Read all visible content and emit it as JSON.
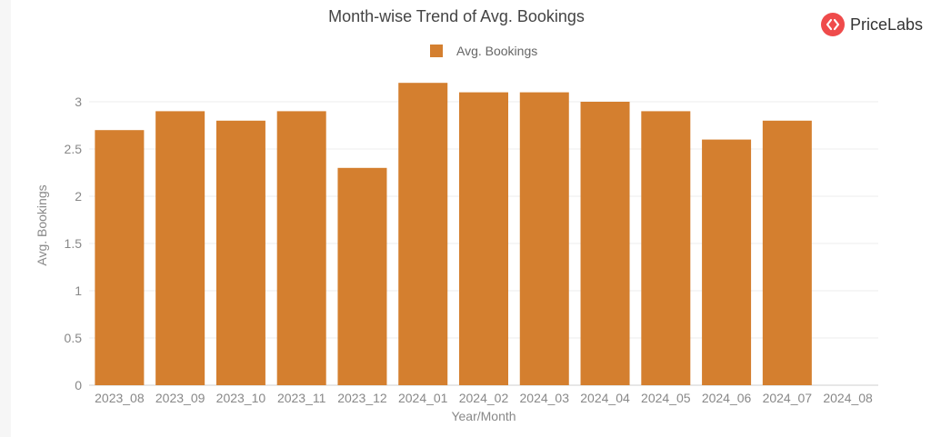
{
  "brand": {
    "name": "PriceLabs",
    "color": "#ef4b4b"
  },
  "chart_data": {
    "type": "bar",
    "title": "Month-wise Trend of Avg. Bookings",
    "xlabel": "Year/Month",
    "ylabel": "Avg. Bookings",
    "categories": [
      "2023_08",
      "2023_09",
      "2023_10",
      "2023_11",
      "2023_12",
      "2024_01",
      "2024_02",
      "2024_03",
      "2024_04",
      "2024_05",
      "2024_06",
      "2024_07",
      "2024_08"
    ],
    "series": [
      {
        "name": "Avg. Bookings",
        "color": "#d47f2f",
        "values": [
          2.7,
          2.9,
          2.8,
          2.9,
          2.3,
          3.2,
          3.1,
          3.1,
          3.0,
          2.9,
          2.6,
          2.8,
          0
        ]
      }
    ],
    "yticks": [
      "0",
      "0.5",
      "1",
      "1.5",
      "2",
      "2.5",
      "3"
    ],
    "ylim": [
      0,
      3.3
    ],
    "grid": true,
    "legend": "top-center"
  }
}
